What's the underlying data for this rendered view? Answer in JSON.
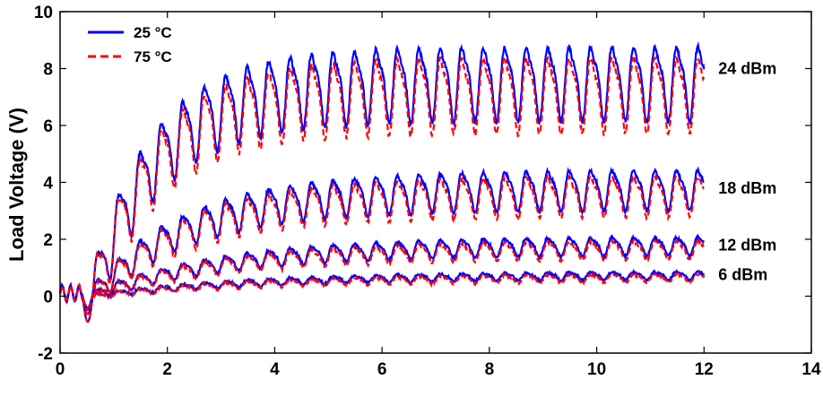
{
  "chart_data": {
    "type": "line",
    "title": "",
    "ylabel": "Load Voltage (V)",
    "xlim": [
      0,
      14
    ],
    "ylim": [
      -2,
      10
    ],
    "xticks": [
      0,
      2,
      4,
      6,
      8,
      10,
      12,
      14
    ],
    "yticks": [
      -2,
      0,
      2,
      4,
      6,
      8,
      10
    ],
    "grid": false,
    "legend_position": "top-left",
    "legend": [
      {
        "label": "25 °C",
        "color": "#0000ff",
        "style": "solid"
      },
      {
        "label": "75 °C",
        "color": "#ff0000",
        "style": "dashed"
      }
    ],
    "power_levels": [
      {
        "label": "24 dBm",
        "steady_mean": 7.6,
        "oscillation_amplitude": 1.4
      },
      {
        "label": "18 dBm",
        "steady_mean": 3.8,
        "oscillation_amplitude": 0.75
      },
      {
        "label": "12 dBm",
        "steady_mean": 1.8,
        "oscillation_amplitude": 0.35
      },
      {
        "label": "6 dBm",
        "steady_mean": 0.75,
        "oscillation_amplitude": 0.15
      }
    ],
    "oscillation_period": 0.4,
    "signal_end_x": 12,
    "temperature_offset_75C": -0.35
  }
}
